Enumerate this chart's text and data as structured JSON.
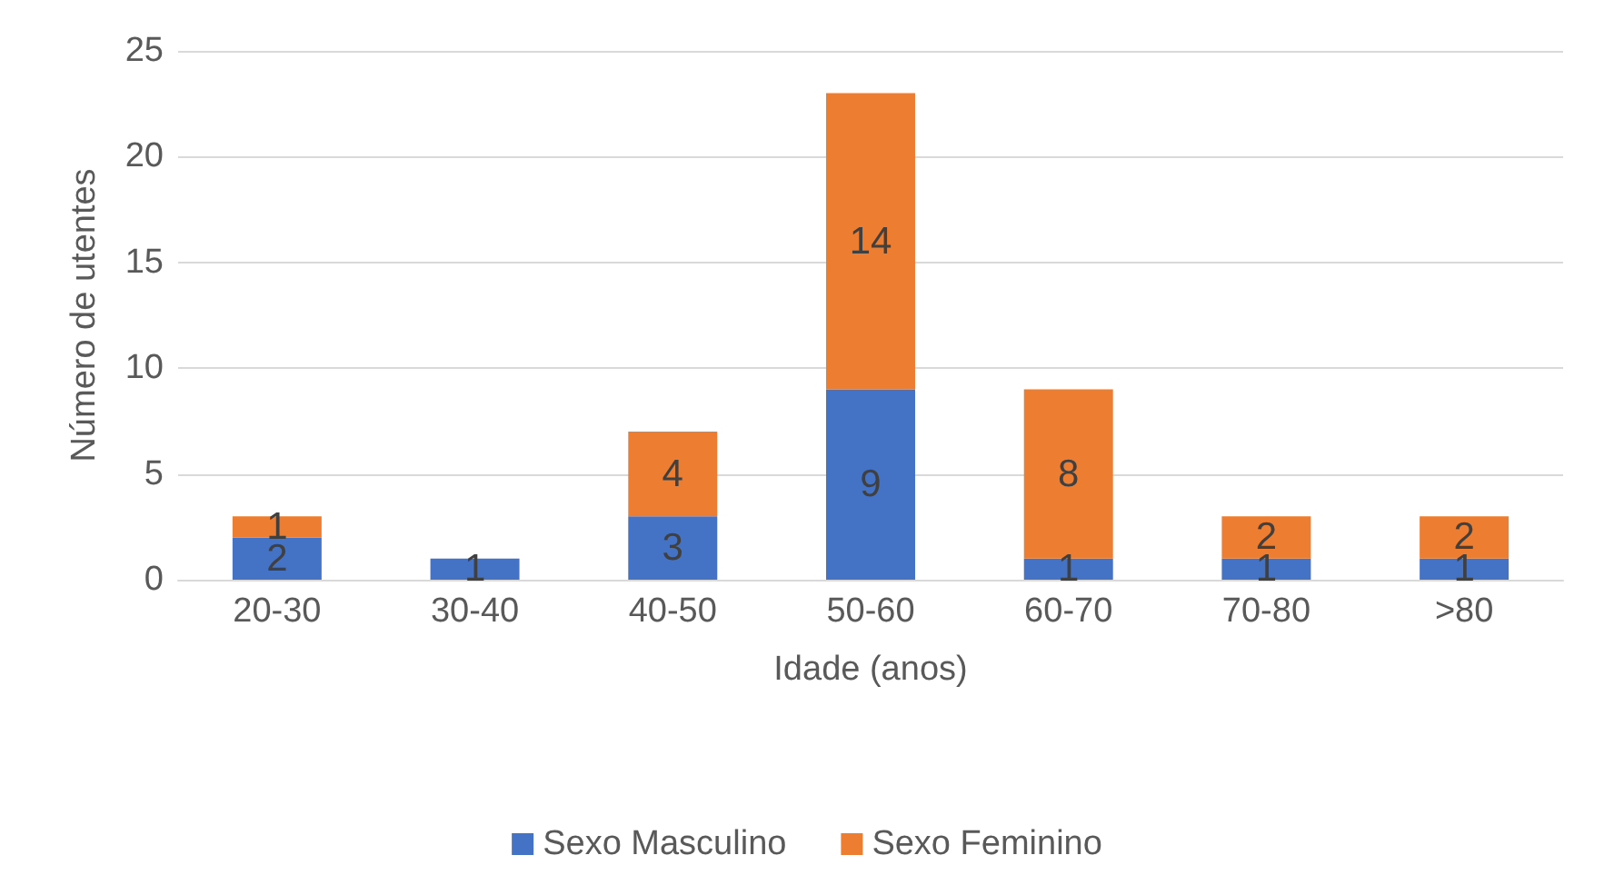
{
  "chart_data": {
    "type": "bar",
    "stacked": true,
    "xlabel": "Idade (anos)",
    "ylabel": "Número de utentes",
    "categories": [
      "20-30",
      "30-40",
      "40-50",
      "50-60",
      "60-70",
      "70-80",
      ">80"
    ],
    "series": [
      {
        "name": "Sexo Masculino",
        "color": "#4472c4",
        "values": [
          2,
          1,
          3,
          9,
          1,
          1,
          1
        ]
      },
      {
        "name": "Sexo Feminino",
        "color": "#ed7d31",
        "values": [
          1,
          null,
          4,
          14,
          8,
          2,
          2
        ]
      }
    ],
    "ylim": [
      0,
      25
    ],
    "yticks": [
      0,
      5,
      10,
      15,
      20,
      25
    ],
    "grid": "y",
    "legend": "bottom",
    "data_labels": true
  }
}
